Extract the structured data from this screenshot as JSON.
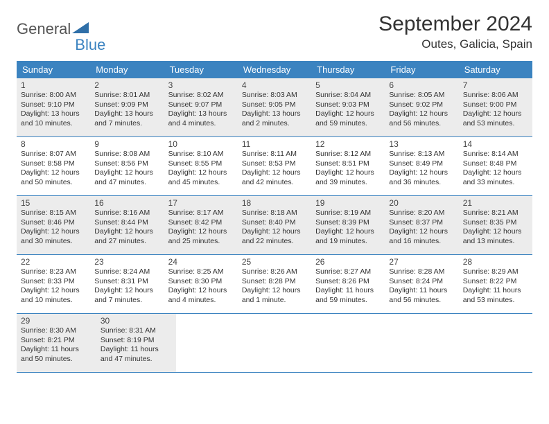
{
  "logo": {
    "text1": "General",
    "text2": "Blue"
  },
  "title": "September 2024",
  "location": "Outes, Galicia, Spain",
  "colors": {
    "headerBg": "#3b83c0",
    "headerText": "#ffffff",
    "grayCell": "#ececec",
    "borderColor": "#3b83c0",
    "logoBlue": "#3b83c0"
  },
  "dayNames": [
    "Sunday",
    "Monday",
    "Tuesday",
    "Wednesday",
    "Thursday",
    "Friday",
    "Saturday"
  ],
  "weeks": [
    {
      "gray": true,
      "days": [
        {
          "n": "1",
          "sr": "Sunrise: 8:00 AM",
          "ss": "Sunset: 9:10 PM",
          "d1": "Daylight: 13 hours",
          "d2": "and 10 minutes."
        },
        {
          "n": "2",
          "sr": "Sunrise: 8:01 AM",
          "ss": "Sunset: 9:09 PM",
          "d1": "Daylight: 13 hours",
          "d2": "and 7 minutes."
        },
        {
          "n": "3",
          "sr": "Sunrise: 8:02 AM",
          "ss": "Sunset: 9:07 PM",
          "d1": "Daylight: 13 hours",
          "d2": "and 4 minutes."
        },
        {
          "n": "4",
          "sr": "Sunrise: 8:03 AM",
          "ss": "Sunset: 9:05 PM",
          "d1": "Daylight: 13 hours",
          "d2": "and 2 minutes."
        },
        {
          "n": "5",
          "sr": "Sunrise: 8:04 AM",
          "ss": "Sunset: 9:03 PM",
          "d1": "Daylight: 12 hours",
          "d2": "and 59 minutes."
        },
        {
          "n": "6",
          "sr": "Sunrise: 8:05 AM",
          "ss": "Sunset: 9:02 PM",
          "d1": "Daylight: 12 hours",
          "d2": "and 56 minutes."
        },
        {
          "n": "7",
          "sr": "Sunrise: 8:06 AM",
          "ss": "Sunset: 9:00 PM",
          "d1": "Daylight: 12 hours",
          "d2": "and 53 minutes."
        }
      ]
    },
    {
      "gray": false,
      "days": [
        {
          "n": "8",
          "sr": "Sunrise: 8:07 AM",
          "ss": "Sunset: 8:58 PM",
          "d1": "Daylight: 12 hours",
          "d2": "and 50 minutes."
        },
        {
          "n": "9",
          "sr": "Sunrise: 8:08 AM",
          "ss": "Sunset: 8:56 PM",
          "d1": "Daylight: 12 hours",
          "d2": "and 47 minutes."
        },
        {
          "n": "10",
          "sr": "Sunrise: 8:10 AM",
          "ss": "Sunset: 8:55 PM",
          "d1": "Daylight: 12 hours",
          "d2": "and 45 minutes."
        },
        {
          "n": "11",
          "sr": "Sunrise: 8:11 AM",
          "ss": "Sunset: 8:53 PM",
          "d1": "Daylight: 12 hours",
          "d2": "and 42 minutes."
        },
        {
          "n": "12",
          "sr": "Sunrise: 8:12 AM",
          "ss": "Sunset: 8:51 PM",
          "d1": "Daylight: 12 hours",
          "d2": "and 39 minutes."
        },
        {
          "n": "13",
          "sr": "Sunrise: 8:13 AM",
          "ss": "Sunset: 8:49 PM",
          "d1": "Daylight: 12 hours",
          "d2": "and 36 minutes."
        },
        {
          "n": "14",
          "sr": "Sunrise: 8:14 AM",
          "ss": "Sunset: 8:48 PM",
          "d1": "Daylight: 12 hours",
          "d2": "and 33 minutes."
        }
      ]
    },
    {
      "gray": true,
      "days": [
        {
          "n": "15",
          "sr": "Sunrise: 8:15 AM",
          "ss": "Sunset: 8:46 PM",
          "d1": "Daylight: 12 hours",
          "d2": "and 30 minutes."
        },
        {
          "n": "16",
          "sr": "Sunrise: 8:16 AM",
          "ss": "Sunset: 8:44 PM",
          "d1": "Daylight: 12 hours",
          "d2": "and 27 minutes."
        },
        {
          "n": "17",
          "sr": "Sunrise: 8:17 AM",
          "ss": "Sunset: 8:42 PM",
          "d1": "Daylight: 12 hours",
          "d2": "and 25 minutes."
        },
        {
          "n": "18",
          "sr": "Sunrise: 8:18 AM",
          "ss": "Sunset: 8:40 PM",
          "d1": "Daylight: 12 hours",
          "d2": "and 22 minutes."
        },
        {
          "n": "19",
          "sr": "Sunrise: 8:19 AM",
          "ss": "Sunset: 8:39 PM",
          "d1": "Daylight: 12 hours",
          "d2": "and 19 minutes."
        },
        {
          "n": "20",
          "sr": "Sunrise: 8:20 AM",
          "ss": "Sunset: 8:37 PM",
          "d1": "Daylight: 12 hours",
          "d2": "and 16 minutes."
        },
        {
          "n": "21",
          "sr": "Sunrise: 8:21 AM",
          "ss": "Sunset: 8:35 PM",
          "d1": "Daylight: 12 hours",
          "d2": "and 13 minutes."
        }
      ]
    },
    {
      "gray": false,
      "days": [
        {
          "n": "22",
          "sr": "Sunrise: 8:23 AM",
          "ss": "Sunset: 8:33 PM",
          "d1": "Daylight: 12 hours",
          "d2": "and 10 minutes."
        },
        {
          "n": "23",
          "sr": "Sunrise: 8:24 AM",
          "ss": "Sunset: 8:31 PM",
          "d1": "Daylight: 12 hours",
          "d2": "and 7 minutes."
        },
        {
          "n": "24",
          "sr": "Sunrise: 8:25 AM",
          "ss": "Sunset: 8:30 PM",
          "d1": "Daylight: 12 hours",
          "d2": "and 4 minutes."
        },
        {
          "n": "25",
          "sr": "Sunrise: 8:26 AM",
          "ss": "Sunset: 8:28 PM",
          "d1": "Daylight: 12 hours",
          "d2": "and 1 minute."
        },
        {
          "n": "26",
          "sr": "Sunrise: 8:27 AM",
          "ss": "Sunset: 8:26 PM",
          "d1": "Daylight: 11 hours",
          "d2": "and 59 minutes."
        },
        {
          "n": "27",
          "sr": "Sunrise: 8:28 AM",
          "ss": "Sunset: 8:24 PM",
          "d1": "Daylight: 11 hours",
          "d2": "and 56 minutes."
        },
        {
          "n": "28",
          "sr": "Sunrise: 8:29 AM",
          "ss": "Sunset: 8:22 PM",
          "d1": "Daylight: 11 hours",
          "d2": "and 53 minutes."
        }
      ]
    },
    {
      "gray": true,
      "days": [
        {
          "n": "29",
          "sr": "Sunrise: 8:30 AM",
          "ss": "Sunset: 8:21 PM",
          "d1": "Daylight: 11 hours",
          "d2": "and 50 minutes."
        },
        {
          "n": "30",
          "sr": "Sunrise: 8:31 AM",
          "ss": "Sunset: 8:19 PM",
          "d1": "Daylight: 11 hours",
          "d2": "and 47 minutes."
        },
        null,
        null,
        null,
        null,
        null
      ]
    }
  ]
}
